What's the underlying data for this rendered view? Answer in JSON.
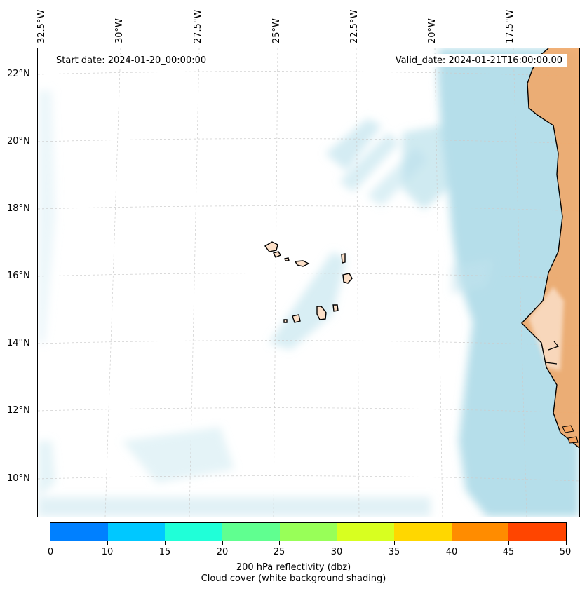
{
  "map": {
    "start_date": "Start date: 2024-01-20_00:00:00",
    "valid_date": "Valid_date: 2024-01-21T16:00:00.00",
    "lon_labels": [
      "32.5°W",
      "30°W",
      "27.5°W",
      "25°W",
      "22.5°W",
      "20°W",
      "17.5°W"
    ],
    "lat_labels": [
      "22°N",
      "20°N",
      "18°N",
      "16°N",
      "14°N",
      "12°N",
      "10°N"
    ],
    "region": "Cabo Verde islands and West African coast"
  },
  "colorbar": {
    "ticks": [
      "0",
      "10",
      "15",
      "20",
      "25",
      "30",
      "35",
      "40",
      "45",
      "50"
    ],
    "colors": [
      "#0080ff",
      "#00c8ff",
      "#20ffd8",
      "#60ff90",
      "#98ff58",
      "#d8ff20",
      "#ffd700",
      "#ff8c00",
      "#ff4500"
    ],
    "label": "200 hPa reflectivity (dbz)",
    "sublabel": "Cloud cover (white background shading)"
  },
  "colors": {
    "cloud": "#a8d8e6",
    "land": "#f4a460",
    "grid": "#cccccc"
  }
}
